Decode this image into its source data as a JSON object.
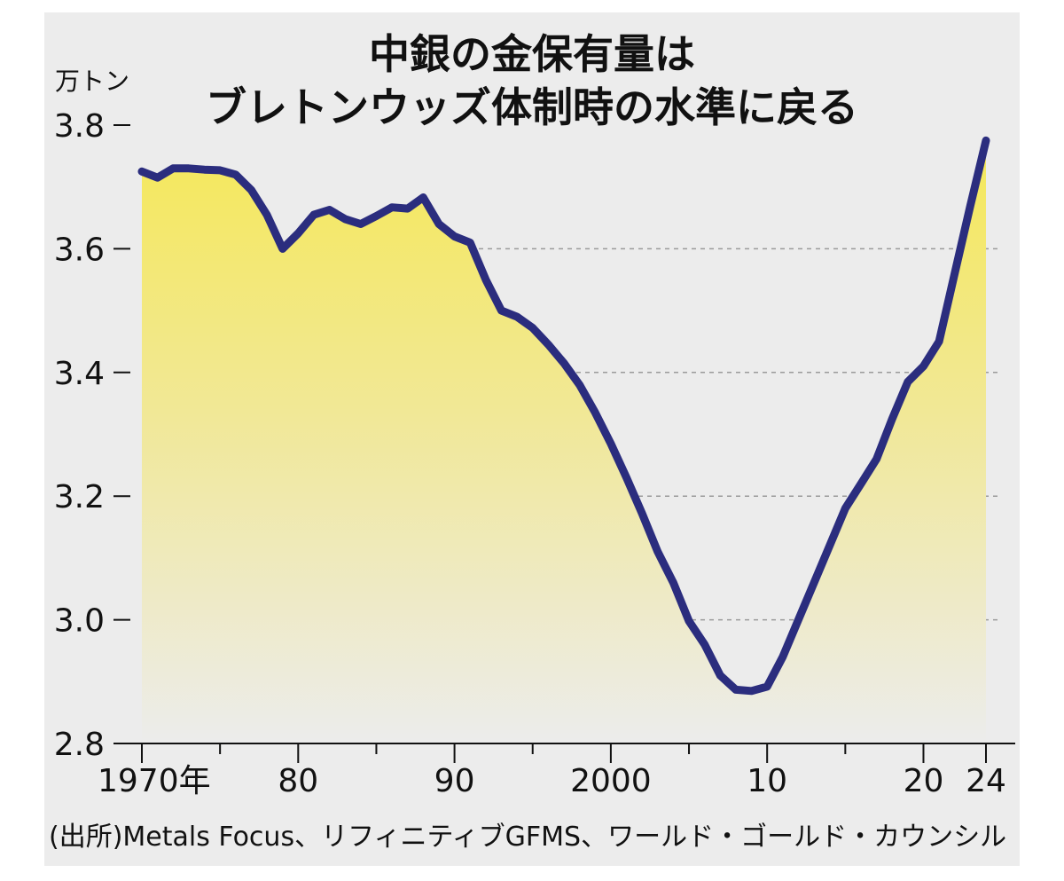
{
  "chart_data": {
    "type": "area",
    "title": "中銀の金保有量は",
    "subtitle": "ブレトンウッズ体制時の水準に戻る",
    "ylabel": "万トン",
    "xlabel": "",
    "ylim": [
      2.8,
      3.8
    ],
    "xlim": [
      1970,
      2024
    ],
    "yticks": [
      "3.8",
      "3.6",
      "3.4",
      "3.2",
      "3.0",
      "2.8"
    ],
    "xtick_labels": [
      {
        "x": 1970,
        "label": "1970年"
      },
      {
        "x": 1980,
        "label": "80"
      },
      {
        "x": 1990,
        "label": "90"
      },
      {
        "x": 2000,
        "label": "2000"
      },
      {
        "x": 2010,
        "label": "10"
      },
      {
        "x": 2020,
        "label": "20"
      },
      {
        "x": 2024,
        "label": "24"
      }
    ],
    "grid": "horizontal-dashed",
    "series": [
      {
        "x": [
          1970,
          1971,
          1972,
          1973,
          1974,
          1975,
          1976,
          1977,
          1978,
          1979,
          1980,
          1981,
          1982,
          1983,
          1984,
          1985,
          1986,
          1987,
          1988,
          1989,
          1990,
          1991,
          1992,
          1993,
          1994,
          1995,
          1996,
          1997,
          1998,
          1999,
          2000,
          2001,
          2002,
          2003,
          2004,
          2005,
          2006,
          2007,
          2008,
          2009,
          2010,
          2011,
          2012,
          2013,
          2014,
          2015,
          2016,
          2017,
          2018,
          2019,
          2020,
          2021,
          2022,
          2023,
          2024
        ],
        "values": [
          3.725,
          3.715,
          3.73,
          3.73,
          3.728,
          3.727,
          3.72,
          3.695,
          3.655,
          3.6,
          3.625,
          3.655,
          3.663,
          3.648,
          3.64,
          3.653,
          3.667,
          3.665,
          3.683,
          3.64,
          3.62,
          3.61,
          3.55,
          3.5,
          3.49,
          3.472,
          3.445,
          3.415,
          3.38,
          3.335,
          3.285,
          3.23,
          3.172,
          3.11,
          3.06,
          2.998,
          2.96,
          2.91,
          2.887,
          2.885,
          2.892,
          2.94,
          3.0,
          3.06,
          3.12,
          3.18,
          3.22,
          3.26,
          3.325,
          3.385,
          3.41,
          3.45,
          3.56,
          3.67,
          3.775
        ]
      }
    ],
    "colors": {
      "line": "#2b2d7e",
      "fill_top": "#f2e65c",
      "fill_bottom": "#ececec",
      "background": "#ececec"
    }
  },
  "source": "(出所)Metals Focus、リフィニティブGFMS、ワールド・ゴールド・カウンシル"
}
